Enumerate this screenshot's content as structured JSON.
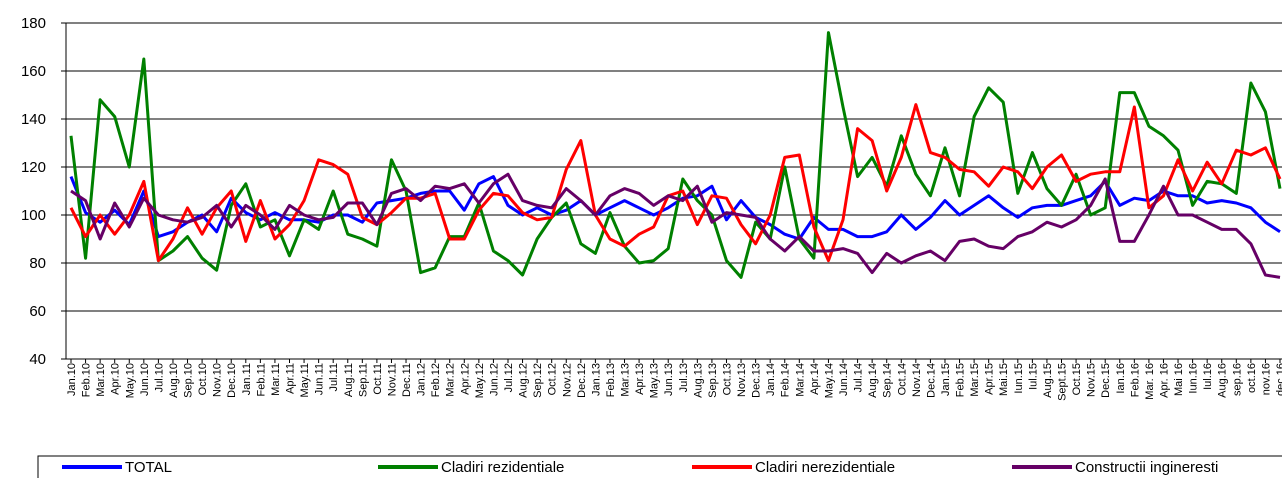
{
  "chart_data": {
    "type": "line",
    "categories": [
      "Jan.10",
      "Feb.10",
      "Mar.10",
      "Apr.10",
      "May.10",
      "Jun.10",
      "Jul.10",
      "Aug.10",
      "Sep.10",
      "Oct.10",
      "Nov.10",
      "Dec.10",
      "Jan.11",
      "Feb.11",
      "Mar.11",
      "Apr.11",
      "May.11",
      "Jun.11",
      "Jul.11",
      "Aug.11",
      "Sep.11",
      "Oct.11",
      "Nov.11",
      "Dec.11",
      "Jan.12",
      "Feb.12",
      "Mar.12",
      "Apr.12",
      "May.12",
      "Jun.12",
      "Jul.12",
      "Aug.12",
      "Sep.12",
      "Oct.12",
      "Nov.12",
      "Dec.12",
      "Jan.13",
      "Feb.13",
      "Mar.13",
      "Apr.13",
      "May.13",
      "Jun.13",
      "Jul.13",
      "Aug.13",
      "Sep.13",
      "Oct.13",
      "Nov.13",
      "Dec.13",
      "Jan.14",
      "Feb.14",
      "Mar.14",
      "Apr.14",
      "May.14",
      "Jun.14",
      "Jul.14",
      "Aug.14",
      "Sep.14",
      "Oct.14",
      "Nov.14",
      "Dec.14",
      "Jan.15",
      "Feb.15",
      "Mar.15",
      "Apr.15",
      "Mai.15",
      "Iun.15",
      "Iul.15",
      "Aug.15",
      "Sept.15",
      "Oct.15",
      "Nov.15",
      "Dec.15",
      "Ian.16",
      "Feb.16",
      "Mar. 16",
      "Apr. 16",
      "Mai 16",
      "Iun.16",
      "Iul.16",
      "Aug.16",
      "sep.16",
      "oct.16",
      "nov.16",
      "dec.16"
    ],
    "series": [
      {
        "name": "TOTAL",
        "color": "#0000ff",
        "values": [
          116,
          101,
          97,
          102,
          96,
          110,
          91,
          93,
          97,
          100,
          93,
          107,
          101,
          98,
          101,
          98,
          98,
          97,
          100,
          100,
          97,
          105,
          106,
          107,
          109,
          110,
          110,
          102,
          113,
          116,
          104,
          100,
          103,
          100,
          102,
          106,
          100,
          103,
          106,
          103,
          100,
          103,
          107,
          108,
          112,
          98,
          106,
          99,
          96,
          92,
          90,
          99,
          94,
          94,
          91,
          91,
          93,
          100,
          94,
          99,
          106,
          100,
          104,
          108,
          103,
          99,
          103,
          104,
          104,
          106,
          108,
          114,
          104,
          107,
          106,
          110,
          108,
          108,
          105,
          106,
          105,
          103,
          97,
          93
        ]
      },
      {
        "name": "Cladiri rezidentiale",
        "color": "#008000",
        "values": [
          133,
          82,
          148,
          141,
          120,
          165,
          81,
          85,
          91,
          82,
          77,
          104,
          113,
          95,
          98,
          83,
          98,
          94,
          110,
          92,
          90,
          87,
          123,
          110,
          76,
          78,
          91,
          91,
          105,
          85,
          81,
          75,
          90,
          99,
          105,
          88,
          84,
          101,
          87,
          80,
          81,
          86,
          115,
          106,
          100,
          81,
          74,
          97,
          90,
          120,
          90,
          82,
          176,
          145,
          116,
          124,
          112,
          133,
          117,
          108,
          128,
          108,
          141,
          153,
          147,
          109,
          126,
          111,
          104,
          117,
          100,
          103,
          151,
          151,
          137,
          133,
          127,
          104,
          114,
          113,
          109,
          155,
          143,
          111
        ]
      },
      {
        "name": "Cladiri nerezidentiale",
        "color": "#ff0000",
        "values": [
          103,
          91,
          100,
          92,
          100,
          114,
          81,
          90,
          103,
          92,
          103,
          110,
          89,
          106,
          90,
          96,
          106,
          123,
          121,
          117,
          99,
          96,
          101,
          107,
          107,
          109,
          90,
          90,
          102,
          109,
          108,
          101,
          98,
          99,
          119,
          131,
          100,
          90,
          87,
          92,
          95,
          108,
          110,
          96,
          108,
          107,
          96,
          88,
          100,
          124,
          125,
          95,
          81,
          98,
          136,
          131,
          110,
          124,
          146,
          126,
          124,
          119,
          118,
          112,
          120,
          118,
          111,
          120,
          125,
          114,
          117,
          118,
          118,
          145,
          103,
          108,
          123,
          110,
          122,
          113,
          127,
          125,
          128,
          115
        ]
      },
      {
        "name": "Constructii ingineresti",
        "color": "#660066",
        "values": [
          110,
          106,
          90,
          105,
          95,
          107,
          100,
          98,
          97,
          99,
          104,
          95,
          104,
          100,
          94,
          104,
          100,
          98,
          99,
          105,
          105,
          96,
          109,
          111,
          106,
          112,
          111,
          113,
          105,
          113,
          117,
          106,
          104,
          103,
          111,
          106,
          100,
          108,
          111,
          109,
          104,
          108,
          106,
          112,
          97,
          101,
          100,
          99,
          90,
          85,
          91,
          85,
          85,
          86,
          84,
          76,
          84,
          80,
          83,
          85,
          81,
          89,
          90,
          87,
          86,
          91,
          93,
          97,
          95,
          98,
          104,
          115,
          89,
          89,
          100,
          112,
          100,
          100,
          97,
          94,
          94,
          88,
          75,
          74
        ]
      }
    ],
    "ylim": [
      40,
      180
    ],
    "yticks": [
      40,
      60,
      80,
      100,
      120,
      140,
      160,
      180
    ],
    "grid": true
  }
}
